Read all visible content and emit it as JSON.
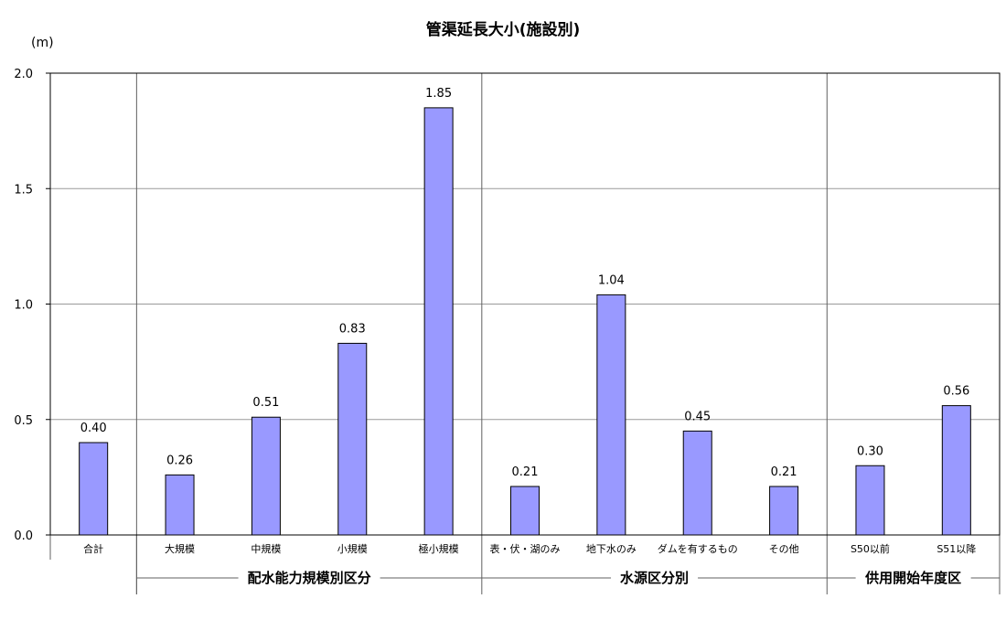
{
  "chart_data": {
    "type": "bar",
    "title": "管渠延長大小(施設別)",
    "unit": "(m)",
    "ylim": [
      0,
      2.0
    ],
    "yticks": [
      "0.0",
      "0.5",
      "1.0",
      "1.5",
      "2.0"
    ],
    "grid": true,
    "bar_color": "#9999ff",
    "categories": [
      "合計",
      "大規模",
      "中規模",
      "小規模",
      "極小規模",
      "表・伏・湖のみ",
      "地下水のみ",
      "ダムを有するもの",
      "その他",
      "S50以前",
      "S51以降"
    ],
    "values": [
      0.4,
      0.26,
      0.51,
      0.83,
      1.85,
      0.21,
      1.04,
      0.45,
      0.21,
      0.3,
      0.56
    ],
    "value_labels": [
      "0.40",
      "0.26",
      "0.51",
      "0.83",
      "1.85",
      "0.21",
      "1.04",
      "0.45",
      "0.21",
      "0.30",
      "0.56"
    ],
    "groups": [
      {
        "label": "配水能力規模別区分",
        "start": 1,
        "end": 4
      },
      {
        "label": "水源区分別",
        "start": 5,
        "end": 8
      },
      {
        "label": "供用開始年度区",
        "start": 9,
        "end": 10
      }
    ]
  }
}
